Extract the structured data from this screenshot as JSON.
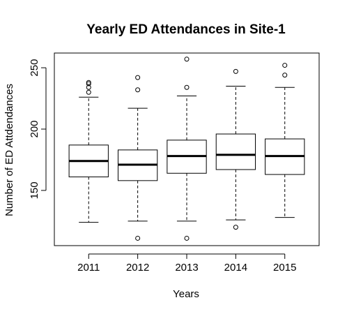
{
  "chart_data": {
    "type": "boxplot",
    "title": "Yearly ED Attendances in Site-1",
    "xlabel": "Years",
    "ylabel": "Number of ED Attdendances",
    "ylim": [
      105,
      262
    ],
    "yticks": [
      150,
      200,
      250
    ],
    "grid": false,
    "categories": [
      "2011",
      "2012",
      "2013",
      "2014",
      "2015"
    ],
    "boxes": [
      {
        "category": "2011",
        "whisker_low": 124,
        "q1": 161,
        "median": 174,
        "q3": 187,
        "whisker_high": 226,
        "outliers": [
          230,
          234,
          237,
          238
        ]
      },
      {
        "category": "2012",
        "whisker_low": 125,
        "q1": 158,
        "median": 171,
        "q3": 183,
        "whisker_high": 217,
        "outliers": [
          111,
          232,
          242
        ]
      },
      {
        "category": "2013",
        "whisker_low": 125,
        "q1": 164,
        "median": 178,
        "q3": 191,
        "whisker_high": 227,
        "outliers": [
          111,
          234,
          257
        ]
      },
      {
        "category": "2014",
        "whisker_low": 126,
        "q1": 167,
        "median": 179,
        "q3": 196,
        "whisker_high": 235,
        "outliers": [
          120,
          247
        ]
      },
      {
        "category": "2015",
        "whisker_low": 128,
        "q1": 163,
        "median": 178,
        "q3": 192,
        "whisker_high": 234,
        "outliers": [
          244,
          252
        ]
      }
    ]
  }
}
